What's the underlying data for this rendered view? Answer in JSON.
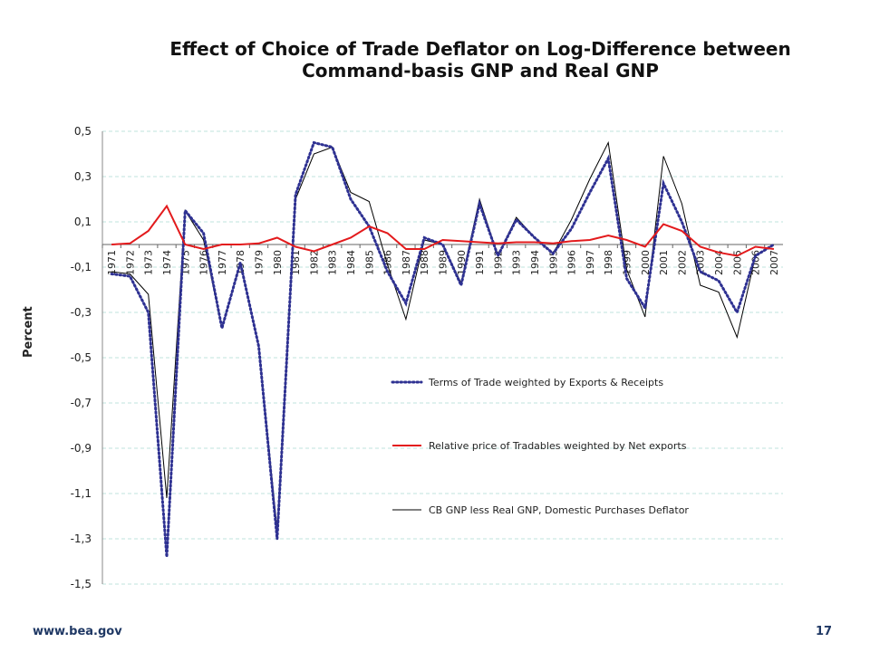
{
  "slide": {
    "title_line1": "Effect of Choice of Trade Deflator on Log-Difference between",
    "title_line2": "Command-basis GNP and Real GNP",
    "footer_url": "www.bea.gov",
    "page_number": "17"
  },
  "chart_data": {
    "type": "line",
    "title": "Effect of Choice of Trade Deflator on Log-Difference between Command-basis GNP and Real GNP",
    "xlabel": "",
    "ylabel": "Percent",
    "ylim": [
      -1.5,
      0.5
    ],
    "yticks": [
      "0,5",
      "0,3",
      "0,1",
      "-0,1",
      "-0,3",
      "-0,5",
      "-0,7",
      "-0,9",
      "-1,1",
      "-1,3",
      "-1,5"
    ],
    "ytick_values": [
      0.5,
      0.3,
      0.1,
      -0.1,
      -0.3,
      -0.5,
      -0.7,
      -0.9,
      -1.1,
      -1.3,
      -1.5
    ],
    "grid": true,
    "legend_position": "center-right",
    "categories": [
      "1971",
      "1972",
      "1973",
      "1974",
      "1975",
      "1976",
      "1977",
      "1978",
      "1979",
      "1980",
      "1981",
      "1982",
      "1983",
      "1984",
      "1985",
      "1986",
      "1987",
      "1988",
      "1989",
      "1990",
      "1991",
      "1992",
      "1993",
      "1994",
      "1995",
      "1996",
      "1997",
      "1998",
      "1999",
      "2000",
      "2001",
      "2002",
      "2003",
      "2004",
      "2005",
      "2006",
      "2007"
    ],
    "series": [
      {
        "name": "Terms of Trade weighted by Exports & Receipts",
        "color": "#2e3192",
        "style": "dotted",
        "values": [
          -0.13,
          -0.14,
          -0.3,
          -1.38,
          0.15,
          0.05,
          -0.37,
          -0.08,
          -0.45,
          -1.3,
          0.22,
          0.45,
          0.43,
          0.2,
          0.08,
          -0.12,
          -0.26,
          0.03,
          0.0,
          -0.18,
          0.18,
          -0.05,
          0.11,
          0.03,
          -0.04,
          0.07,
          0.23,
          0.38,
          -0.15,
          -0.28,
          0.27,
          0.1,
          -0.12,
          -0.16,
          -0.3,
          -0.05,
          0.0
        ]
      },
      {
        "name": "Relative price of Tradables weighted by Net exports",
        "color": "#e31a1c",
        "style": "solid",
        "values": [
          0.0,
          0.005,
          0.06,
          0.17,
          0.0,
          -0.02,
          0.0,
          0.0,
          0.005,
          0.03,
          -0.01,
          -0.03,
          0.0,
          0.03,
          0.08,
          0.05,
          -0.02,
          -0.02,
          0.02,
          0.015,
          0.01,
          0.005,
          0.01,
          0.01,
          0.005,
          0.015,
          0.02,
          0.04,
          0.02,
          -0.01,
          0.09,
          0.06,
          -0.01,
          -0.035,
          -0.05,
          -0.01,
          -0.02
        ]
      },
      {
        "name": "CB GNP less Real GNP, Domestic Purchases Deflator",
        "color": "#000000",
        "style": "solid",
        "values": [
          -0.12,
          -0.13,
          -0.22,
          -1.12,
          0.15,
          0.02,
          -0.37,
          -0.08,
          -0.45,
          -1.26,
          0.2,
          0.4,
          0.43,
          0.23,
          0.19,
          -0.09,
          -0.33,
          0.02,
          0.0,
          -0.17,
          0.2,
          -0.05,
          0.12,
          0.03,
          -0.04,
          0.11,
          0.29,
          0.45,
          -0.11,
          -0.32,
          0.39,
          0.18,
          -0.18,
          -0.21,
          -0.41,
          -0.05,
          0.0
        ]
      }
    ]
  }
}
